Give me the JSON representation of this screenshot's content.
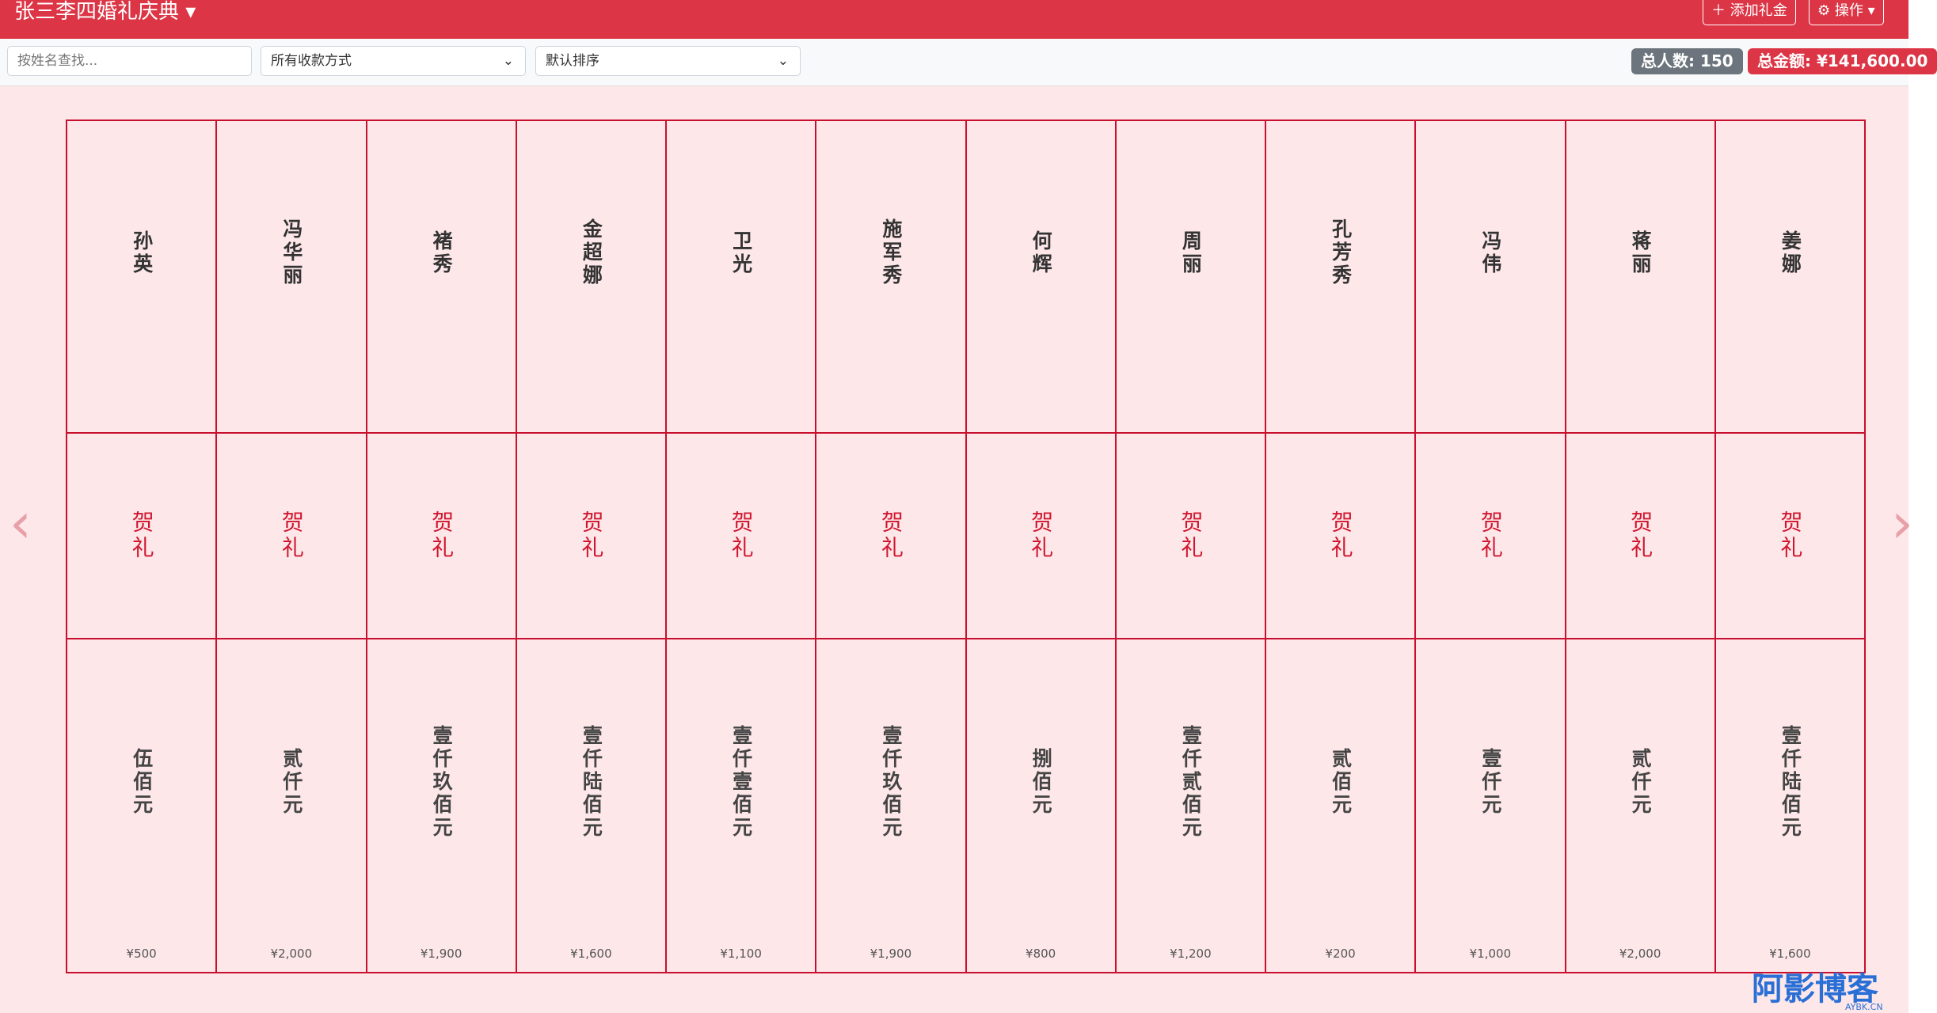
{
  "header": {
    "title": "张三李四婚礼庆典",
    "buttons": [
      "添加礼金",
      "操作"
    ]
  },
  "toolbar": {
    "search_placeholder": "按姓名查找...",
    "payment_filter": "所有收款方式",
    "sort": "默认排序",
    "badges": [
      "总人数: 150",
      "总金额: ¥141,600.00"
    ]
  },
  "gift_book": {
    "entries": [
      {
        "name": "孙英",
        "label": "贺礼",
        "amount_text": "伍佰元",
        "amount": "¥500"
      },
      {
        "name": "冯华丽",
        "label": "贺礼",
        "amount_text": "贰仟元",
        "amount": "¥2,000"
      },
      {
        "name": "褚秀",
        "label": "贺礼",
        "amount_text": "壹仟玖佰元",
        "amount": "¥1,900"
      },
      {
        "name": "金超娜",
        "label": "贺礼",
        "amount_text": "壹仟陆佰元",
        "amount": "¥1,600"
      },
      {
        "name": "卫光",
        "label": "贺礼",
        "amount_text": "壹仟壹佰元",
        "amount": "¥1,100"
      },
      {
        "name": "施军秀",
        "label": "贺礼",
        "amount_text": "壹仟玖佰元",
        "amount": "¥1,900"
      },
      {
        "name": "何辉",
        "label": "贺礼",
        "amount_text": "捌佰元",
        "amount": "¥800"
      },
      {
        "name": "周丽",
        "label": "贺礼",
        "amount_text": "壹仟贰佰元",
        "amount": "¥1,200"
      },
      {
        "name": "孔芳秀",
        "label": "贺礼",
        "amount_text": "贰佰元",
        "amount": "¥200"
      },
      {
        "name": "冯伟",
        "label": "贺礼",
        "amount_text": "壹仟元",
        "amount": "¥1,000"
      },
      {
        "name": "蒋丽",
        "label": "贺礼",
        "amount_text": "贰仟元",
        "amount": "¥2,000"
      },
      {
        "name": "姜娜",
        "label": "贺礼",
        "amount_text": "壹仟陆佰元",
        "amount": "¥1,600"
      }
    ]
  },
  "watermark": {
    "title": "阿影博客",
    "subtitle": "AYBK.CN"
  }
}
